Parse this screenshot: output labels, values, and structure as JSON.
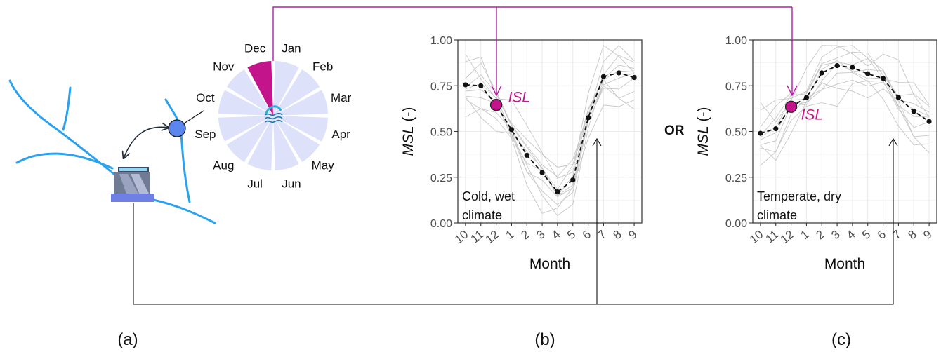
{
  "panel_labels": [
    "(a)",
    "(b)",
    "(c)"
  ],
  "or_label": "OR",
  "month_wheel": {
    "labels": [
      "Jan",
      "Feb",
      "Mar",
      "Apr",
      "May",
      "Jun",
      "Jul",
      "Aug",
      "Sep",
      "Oct",
      "Nov",
      "Dec"
    ],
    "highlighted": "Dec",
    "highlight_color": "#c4148c",
    "segment_color": "#dde1fa"
  },
  "colors": {
    "river": "#2aa2f0",
    "gauge": "#5b86ee",
    "magenta": "#c4148c",
    "pointer": "#b31ea8",
    "grid_line": "#ebebeb",
    "thin_series": "#c7c7c7"
  },
  "chart_data": [
    {
      "type": "line",
      "xlabel": "Month",
      "ylabel": "MSL",
      "ylabel_unit": "(-)",
      "ylim": [
        0,
        1
      ],
      "yticks": [
        "0.00",
        "0.25",
        "0.50",
        "0.75",
        "1.00"
      ],
      "categories": [
        "10",
        "11",
        "12",
        "1",
        "2",
        "3",
        "4",
        "5",
        "6",
        "7",
        "8",
        "9"
      ],
      "series": [
        {
          "values": [
            0.755,
            0.75,
            0.645,
            0.51,
            0.37,
            0.275,
            0.17,
            0.235,
            0.575,
            0.8,
            0.82,
            0.795
          ]
        }
      ],
      "highlight": {
        "label": "ISL",
        "month": "12",
        "value": 0.645
      },
      "annotation": [
        "Cold, wet",
        "climate"
      ],
      "grid": true
    },
    {
      "type": "line",
      "xlabel": "Month",
      "ylabel": "MSL",
      "ylabel_unit": "(-)",
      "ylim": [
        0,
        1
      ],
      "yticks": [
        "0.00",
        "0.25",
        "0.50",
        "0.75",
        "1.00"
      ],
      "categories": [
        "10",
        "11",
        "12",
        "1",
        "2",
        "3",
        "4",
        "5",
        "6",
        "7",
        "8",
        "9"
      ],
      "series": [
        {
          "values": [
            0.49,
            0.515,
            0.635,
            0.685,
            0.82,
            0.86,
            0.85,
            0.815,
            0.79,
            0.685,
            0.61,
            0.555
          ]
        }
      ],
      "highlight": {
        "label": "ISL",
        "month": "12",
        "value": 0.635
      },
      "annotation": [
        "Temperate, dry",
        "climate"
      ],
      "grid": true
    }
  ]
}
